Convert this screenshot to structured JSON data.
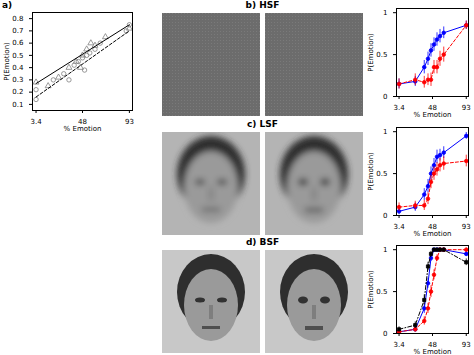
{
  "chart_data": [
    {
      "type": "scatter",
      "title": "a)",
      "x_label": "% Emotion",
      "y_label": "P(Emotion)",
      "xlim": [
        0,
        96
      ],
      "ylim": [
        0.05,
        0.85
      ],
      "xticks": [
        3.4,
        48,
        93
      ],
      "yticks": [
        0.1,
        0.2,
        0.3,
        0.4,
        0.5,
        0.6,
        0.7,
        0.8
      ],
      "series": [
        {
          "type": "scatter",
          "marker": "open_circle",
          "color": "#808080",
          "x": [
            3.4,
            3.4,
            20,
            30,
            35,
            40,
            44,
            48,
            50,
            52,
            55,
            60,
            65,
            90,
            93
          ],
          "values": [
            0.14,
            0.22,
            0.3,
            0.35,
            0.3,
            0.42,
            0.45,
            0.48,
            0.38,
            0.5,
            0.52,
            0.55,
            0.6,
            0.7,
            0.75
          ]
        },
        {
          "type": "scatter",
          "marker": "open_triangle",
          "color": "#808080",
          "x": [
            3.4,
            15,
            25,
            35,
            42,
            46,
            48,
            52,
            56,
            60,
            70,
            93
          ],
          "values": [
            0.28,
            0.25,
            0.32,
            0.4,
            0.45,
            0.4,
            0.5,
            0.55,
            0.6,
            0.58,
            0.65,
            0.72
          ]
        },
        {
          "type": "line",
          "line_style": "solid",
          "color": "#000000",
          "x": [
            3.4,
            93
          ],
          "values": [
            0.27,
            0.75
          ]
        },
        {
          "type": "line",
          "line_style": "dashed",
          "color": "#000000",
          "x": [
            3.4,
            93
          ],
          "values": [
            0.16,
            0.7
          ]
        }
      ]
    },
    {
      "type": "line",
      "title": "b) HSF",
      "x_label": "% Emotion",
      "y_label": "P(Emotion)",
      "xlim": [
        0,
        96
      ],
      "ylim": [
        0,
        1.05
      ],
      "xticks": [
        3.4,
        48,
        93
      ],
      "yticks": [
        0,
        0.5,
        1
      ],
      "x": [
        3.4,
        25,
        37,
        42,
        46,
        50,
        54,
        58,
        63,
        93
      ],
      "series": [
        {
          "color": "#0000ff",
          "line_style": "solid",
          "marker": "circle",
          "values": [
            0.15,
            0.18,
            0.35,
            0.45,
            0.55,
            0.62,
            0.68,
            0.72,
            0.76,
            0.85
          ],
          "error": [
            0.06,
            0.06,
            0.08,
            0.08,
            0.08,
            0.08,
            0.08,
            0.08,
            0.07,
            0.05
          ]
        },
        {
          "color": "#ff0000",
          "line_style": "dashed",
          "marker": "circle",
          "values": [
            0.15,
            0.2,
            0.17,
            0.2,
            0.2,
            0.35,
            0.35,
            0.45,
            0.5,
            0.85
          ],
          "error": [
            0.06,
            0.07,
            0.07,
            0.07,
            0.08,
            0.08,
            0.08,
            0.09,
            0.09,
            0.05
          ]
        }
      ]
    },
    {
      "type": "line",
      "title": "c) LSF",
      "x_label": "% Emotion",
      "y_label": "P(Emotion)",
      "xlim": [
        0,
        96
      ],
      "ylim": [
        0,
        1.05
      ],
      "xticks": [
        3.4,
        48,
        93
      ],
      "yticks": [
        0,
        0.5,
        1
      ],
      "x": [
        3.4,
        25,
        37,
        42,
        46,
        50,
        54,
        58,
        63,
        93
      ],
      "series": [
        {
          "color": "#0000ff",
          "line_style": "solid",
          "marker": "circle",
          "values": [
            0.05,
            0.1,
            0.25,
            0.35,
            0.5,
            0.6,
            0.7,
            0.72,
            0.75,
            0.95
          ],
          "error": [
            0.04,
            0.05,
            0.07,
            0.08,
            0.08,
            0.08,
            0.08,
            0.07,
            0.07,
            0.04
          ]
        },
        {
          "color": "#ff0000",
          "line_style": "dashed",
          "marker": "circle",
          "values": [
            0.1,
            0.12,
            0.12,
            0.2,
            0.4,
            0.5,
            0.55,
            0.6,
            0.62,
            0.65
          ],
          "error": [
            0.05,
            0.05,
            0.06,
            0.07,
            0.08,
            0.08,
            0.08,
            0.08,
            0.08,
            0.07
          ]
        }
      ]
    },
    {
      "type": "line",
      "title": "d) BSF",
      "x_label": "% Emotion",
      "y_label": "P(Emotion)",
      "xlim": [
        0,
        96
      ],
      "ylim": [
        0,
        1.05
      ],
      "xticks": [
        3.4,
        48,
        93
      ],
      "yticks": [
        0,
        0.5,
        1
      ],
      "x": [
        3.4,
        25,
        37,
        42,
        46,
        50,
        54,
        58,
        63,
        93
      ],
      "series": [
        {
          "color": "#0000ff",
          "line_style": "solid",
          "marker": "circle",
          "values": [
            0.02,
            0.05,
            0.3,
            0.6,
            0.9,
            1,
            1,
            1,
            1,
            0.95
          ],
          "error": [
            0.02,
            0.03,
            0.06,
            0.06,
            0.04,
            0.02,
            0.02,
            0.02,
            0.02,
            0.03
          ]
        },
        {
          "color": "#ff0000",
          "line_style": "dashed",
          "marker": "circle",
          "values": [
            0.02,
            0.05,
            0.15,
            0.3,
            0.5,
            0.7,
            0.9,
            1,
            1,
            1
          ],
          "error": [
            0.02,
            0.03,
            0.05,
            0.06,
            0.07,
            0.06,
            0.04,
            0.02,
            0.02,
            0.02
          ]
        },
        {
          "color": "#000000",
          "line_style": "dashdot",
          "marker": "square",
          "values": [
            0.05,
            0.1,
            0.4,
            0.8,
            0.95,
            1,
            1,
            1,
            1,
            0.85
          ],
          "error": [
            0.03,
            0.04,
            0.06,
            0.05,
            0.03,
            0.02,
            0.02,
            0.02,
            0.02,
            0.04
          ]
        }
      ]
    }
  ]
}
